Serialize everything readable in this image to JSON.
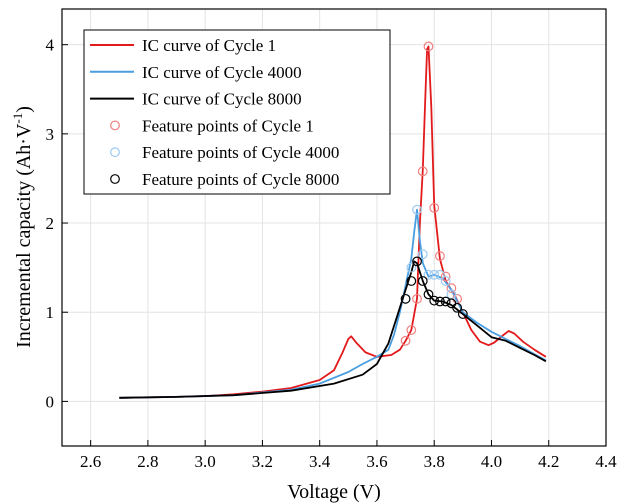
{
  "chart_data": {
    "type": "line",
    "xlabel": "Voltage (V)",
    "ylabel": "Incremental capacity (Ah·V",
    "ylabel_sup": "-1",
    "ylabel_end": ")",
    "xlim": [
      2.5,
      4.4
    ],
    "ylim": [
      -0.5,
      4.4
    ],
    "xticks": [
      2.6,
      2.8,
      3.0,
      3.2,
      3.4,
      3.6,
      3.8,
      4.0,
      4.2,
      4.4
    ],
    "xtick_labels": [
      "2.6",
      "2.8",
      "3.0",
      "3.2",
      "3.4",
      "3.6",
      "3.8",
      "4.0",
      "4.2",
      "4.4"
    ],
    "yticks": [
      0,
      1,
      2,
      3,
      4
    ],
    "ytick_labels": [
      "0",
      "1",
      "2",
      "3",
      "4"
    ],
    "grid": true,
    "legend_position": "top-left",
    "series": [
      {
        "name": "IC curve of Cycle 1",
        "kind": "line",
        "color": "#e31a1c",
        "x": [
          2.7,
          2.9,
          3.0,
          3.1,
          3.2,
          3.3,
          3.4,
          3.45,
          3.48,
          3.5,
          3.51,
          3.53,
          3.56,
          3.6,
          3.65,
          3.68,
          3.7,
          3.72,
          3.74,
          3.75,
          3.76,
          3.77,
          3.775,
          3.78,
          3.79,
          3.8,
          3.82,
          3.84,
          3.87,
          3.9,
          3.93,
          3.96,
          3.99,
          4.01,
          4.04,
          4.06,
          4.08,
          4.11,
          4.15,
          4.19
        ],
        "y": [
          0.04,
          0.05,
          0.06,
          0.08,
          0.11,
          0.15,
          0.24,
          0.35,
          0.55,
          0.7,
          0.73,
          0.65,
          0.55,
          0.5,
          0.52,
          0.58,
          0.68,
          0.8,
          1.15,
          2.0,
          2.6,
          3.5,
          3.95,
          3.98,
          3.3,
          2.2,
          1.6,
          1.35,
          1.2,
          1.0,
          0.8,
          0.67,
          0.63,
          0.66,
          0.74,
          0.79,
          0.76,
          0.67,
          0.58,
          0.5
        ]
      },
      {
        "name": "IC curve of Cycle 4000",
        "kind": "line",
        "color": "#4a9ee0",
        "x": [
          2.7,
          2.9,
          3.1,
          3.3,
          3.4,
          3.5,
          3.55,
          3.6,
          3.64,
          3.66,
          3.68,
          3.7,
          3.72,
          3.73,
          3.74,
          3.75,
          3.76,
          3.78,
          3.8,
          3.83,
          3.86,
          3.9,
          3.95,
          4.0,
          4.05,
          4.1,
          4.15,
          4.19
        ],
        "y": [
          0.04,
          0.05,
          0.07,
          0.13,
          0.2,
          0.33,
          0.42,
          0.5,
          0.58,
          0.75,
          1.0,
          1.3,
          1.6,
          1.9,
          2.15,
          1.8,
          1.55,
          1.4,
          1.42,
          1.38,
          1.25,
          1.0,
          0.88,
          0.78,
          0.7,
          0.62,
          0.53,
          0.46
        ]
      },
      {
        "name": "IC curve of Cycle 8000",
        "kind": "line",
        "color": "#000000",
        "x": [
          2.7,
          2.9,
          3.1,
          3.3,
          3.45,
          3.55,
          3.6,
          3.64,
          3.67,
          3.69,
          3.71,
          3.72,
          3.73,
          3.74,
          3.76,
          3.78,
          3.8,
          3.83,
          3.86,
          3.9,
          3.95,
          4.0,
          4.05,
          4.1,
          4.15,
          4.19
        ],
        "y": [
          0.04,
          0.05,
          0.07,
          0.12,
          0.2,
          0.3,
          0.42,
          0.65,
          0.95,
          1.15,
          1.35,
          1.45,
          1.57,
          1.55,
          1.35,
          1.2,
          1.13,
          1.12,
          1.08,
          0.98,
          0.85,
          0.72,
          0.68,
          0.6,
          0.52,
          0.45
        ]
      },
      {
        "name": "Feature points of Cycle 1",
        "kind": "points",
        "color": "#f08080",
        "x": [
          3.7,
          3.72,
          3.74,
          3.76,
          3.78,
          3.8,
          3.82,
          3.84,
          3.86,
          3.88
        ],
        "y": [
          0.68,
          0.8,
          1.15,
          2.58,
          3.98,
          2.17,
          1.63,
          1.4,
          1.27,
          1.15
        ]
      },
      {
        "name": "Feature points of Cycle 4000",
        "kind": "points",
        "color": "#9cc9f2",
        "x": [
          3.7,
          3.72,
          3.74,
          3.76,
          3.78,
          3.8,
          3.82,
          3.84,
          3.86
        ],
        "y": [
          1.15,
          1.5,
          2.15,
          1.65,
          1.42,
          1.42,
          1.42,
          1.35,
          1.2
        ]
      },
      {
        "name": "Feature points of Cycle 8000",
        "kind": "points",
        "color": "#000000",
        "x": [
          3.7,
          3.72,
          3.74,
          3.76,
          3.78,
          3.8,
          3.82,
          3.84,
          3.86,
          3.88,
          3.9
        ],
        "y": [
          1.15,
          1.35,
          1.57,
          1.35,
          1.2,
          1.13,
          1.12,
          1.12,
          1.1,
          1.05,
          0.98
        ]
      }
    ]
  }
}
